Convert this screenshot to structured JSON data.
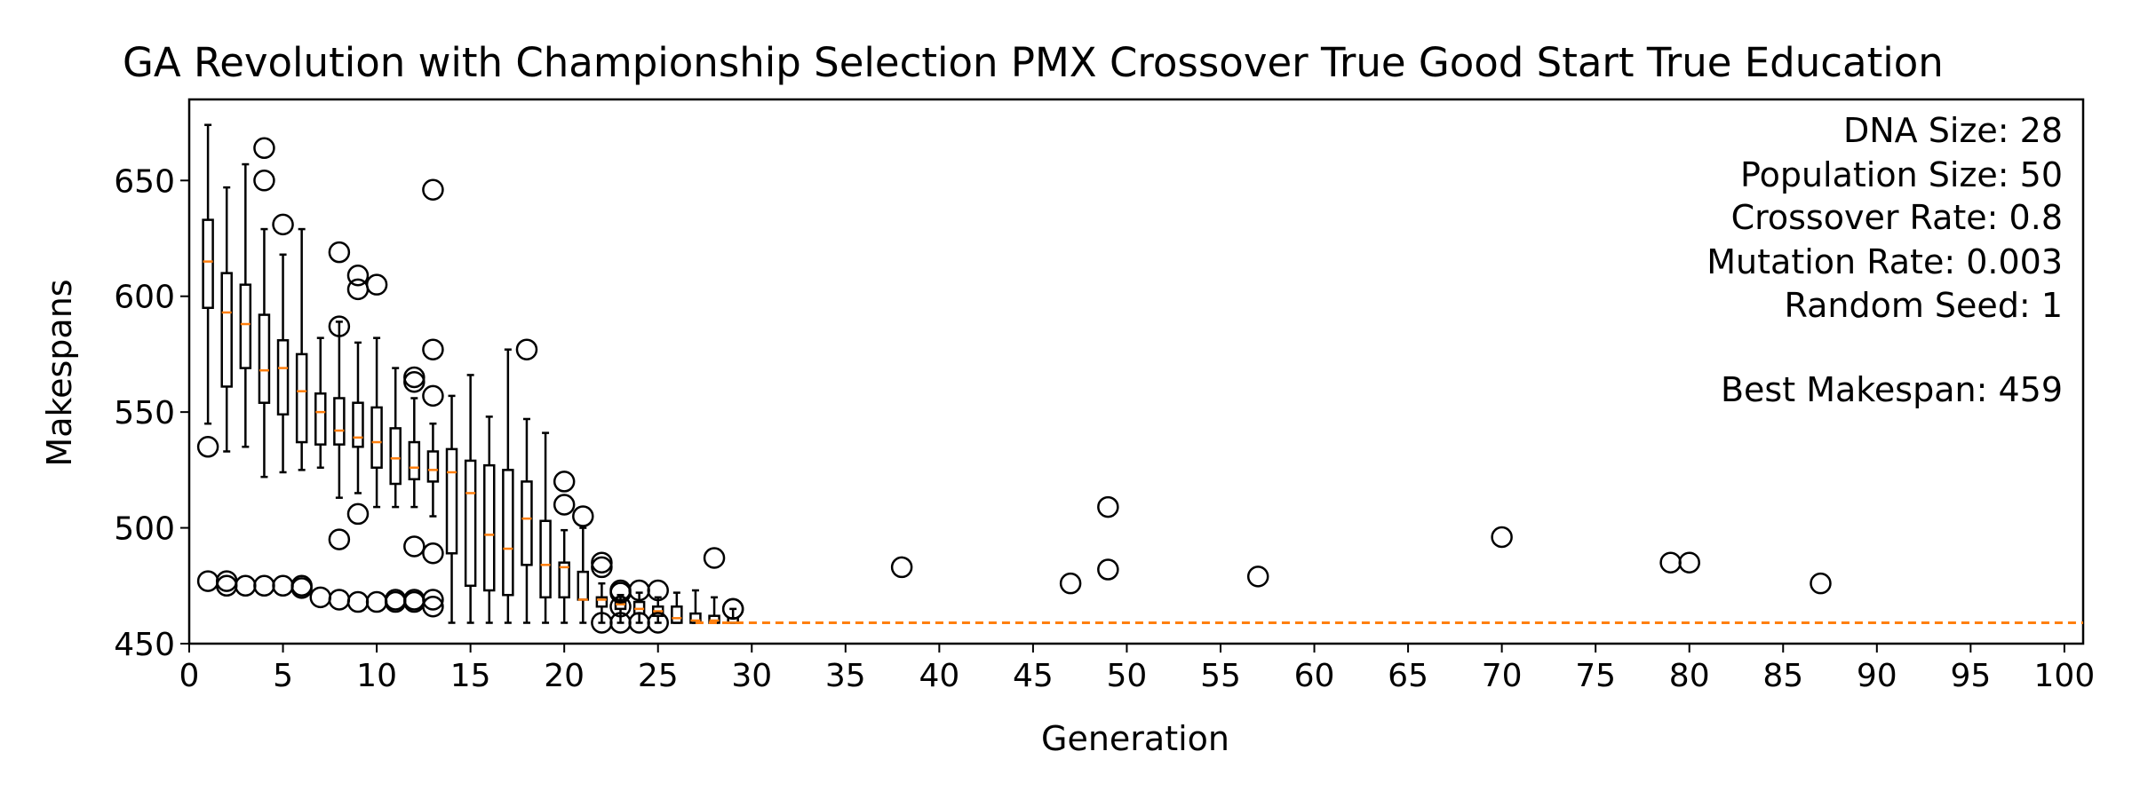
{
  "chart_data": {
    "type": "box",
    "title": "GA Revolution with Championship Selection PMX Crossover True Good Start True Education",
    "xlabel": "Generation",
    "ylabel": "Makespans",
    "xlim": [
      0,
      101
    ],
    "ylim": [
      450,
      685
    ],
    "xticks": [
      0,
      5,
      10,
      15,
      20,
      25,
      30,
      35,
      40,
      45,
      50,
      55,
      60,
      65,
      70,
      75,
      80,
      85,
      90,
      95,
      100
    ],
    "yticks": [
      450,
      500,
      550,
      600,
      650
    ],
    "grid": false,
    "colors": {
      "box": "#000000",
      "median": "#ff7f0e",
      "best_line": "#ff7f0e",
      "flier": "#000000"
    },
    "boxes": [
      {
        "x": 1,
        "low": 545,
        "q1": 595,
        "median": 615,
        "q3": 633,
        "high": 674
      },
      {
        "x": 2,
        "low": 533,
        "q1": 561,
        "median": 593,
        "q3": 610,
        "high": 647
      },
      {
        "x": 3,
        "low": 535,
        "q1": 569,
        "median": 588,
        "q3": 605,
        "high": 657
      },
      {
        "x": 4,
        "low": 522,
        "q1": 554,
        "median": 568,
        "q3": 592,
        "high": 629
      },
      {
        "x": 5,
        "low": 524,
        "q1": 549,
        "median": 569,
        "q3": 581,
        "high": 618
      },
      {
        "x": 6,
        "low": 525,
        "q1": 537,
        "median": 559,
        "q3": 575,
        "high": 629
      },
      {
        "x": 7,
        "low": 526,
        "q1": 536,
        "median": 550,
        "q3": 558,
        "high": 582
      },
      {
        "x": 8,
        "low": 513,
        "q1": 536,
        "median": 542,
        "q3": 556,
        "high": 589
      },
      {
        "x": 9,
        "low": 515,
        "q1": 535,
        "median": 539,
        "q3": 554,
        "high": 580
      },
      {
        "x": 10,
        "low": 509,
        "q1": 526,
        "median": 537,
        "q3": 552,
        "high": 582
      },
      {
        "x": 11,
        "low": 509,
        "q1": 519,
        "median": 530,
        "q3": 543,
        "high": 569
      },
      {
        "x": 12,
        "low": 509,
        "q1": 521,
        "median": 526,
        "q3": 537,
        "high": 556
      },
      {
        "x": 13,
        "low": 505,
        "q1": 520,
        "median": 525,
        "q3": 533,
        "high": 545
      },
      {
        "x": 14,
        "low": 459,
        "q1": 489,
        "median": 524,
        "q3": 534,
        "high": 557
      },
      {
        "x": 15,
        "low": 459,
        "q1": 475,
        "median": 515,
        "q3": 529,
        "high": 566
      },
      {
        "x": 16,
        "low": 459,
        "q1": 473,
        "median": 497,
        "q3": 527,
        "high": 548
      },
      {
        "x": 17,
        "low": 459,
        "q1": 471,
        "median": 491,
        "q3": 525,
        "high": 577
      },
      {
        "x": 18,
        "low": 459,
        "q1": 484,
        "median": 504,
        "q3": 520,
        "high": 547
      },
      {
        "x": 19,
        "low": 459,
        "q1": 470,
        "median": 484,
        "q3": 503,
        "high": 541
      },
      {
        "x": 20,
        "low": 459,
        "q1": 470,
        "median": 483,
        "q3": 485,
        "high": 499
      },
      {
        "x": 21,
        "low": 459,
        "q1": 469,
        "median": 469,
        "q3": 481,
        "high": 500
      },
      {
        "x": 22,
        "low": 459,
        "q1": 466,
        "median": 469,
        "q3": 470,
        "high": 476
      },
      {
        "x": 23,
        "low": 459,
        "q1": 465,
        "median": 467,
        "q3": 468,
        "high": 471
      },
      {
        "x": 24,
        "low": 459,
        "q1": 463,
        "median": 465,
        "q3": 468,
        "high": 472
      },
      {
        "x": 25,
        "low": 459,
        "q1": 462,
        "median": 464,
        "q3": 466,
        "high": 470
      },
      {
        "x": 26,
        "low": 459,
        "q1": 459,
        "median": 461,
        "q3": 466,
        "high": 472
      },
      {
        "x": 27,
        "low": 459,
        "q1": 459,
        "median": 460,
        "q3": 463,
        "high": 473
      },
      {
        "x": 28,
        "low": 459,
        "q1": 459,
        "median": 460,
        "q3": 462,
        "high": 470
      },
      {
        "x": 29,
        "low": 459,
        "q1": 459,
        "median": 459,
        "q3": 461,
        "high": 465
      }
    ],
    "fliers": [
      [
        1,
        535
      ],
      [
        1,
        477
      ],
      [
        2,
        477
      ],
      [
        2,
        475
      ],
      [
        3,
        475
      ],
      [
        4,
        664
      ],
      [
        4,
        650
      ],
      [
        4,
        475
      ],
      [
        5,
        631
      ],
      [
        5,
        475
      ],
      [
        6,
        475
      ],
      [
        6,
        474
      ],
      [
        7,
        470
      ],
      [
        8,
        619
      ],
      [
        8,
        587
      ],
      [
        8,
        495
      ],
      [
        8,
        469
      ],
      [
        9,
        609
      ],
      [
        9,
        603
      ],
      [
        9,
        506
      ],
      [
        9,
        468
      ],
      [
        10,
        605
      ],
      [
        10,
        468
      ],
      [
        11,
        469
      ],
      [
        11,
        468
      ],
      [
        12,
        565
      ],
      [
        12,
        563
      ],
      [
        12,
        492
      ],
      [
        12,
        469
      ],
      [
        12,
        468
      ],
      [
        13,
        646
      ],
      [
        13,
        577
      ],
      [
        13,
        557
      ],
      [
        13,
        489
      ],
      [
        13,
        469
      ],
      [
        13,
        466
      ],
      [
        18,
        577
      ],
      [
        20,
        520
      ],
      [
        20,
        510
      ],
      [
        21,
        505
      ],
      [
        22,
        485
      ],
      [
        22,
        483
      ],
      [
        22,
        459
      ],
      [
        23,
        473
      ],
      [
        23,
        472
      ],
      [
        23,
        466
      ],
      [
        23,
        459
      ],
      [
        24,
        473
      ],
      [
        24,
        459
      ],
      [
        25,
        473
      ],
      [
        25,
        459
      ],
      [
        28,
        487
      ],
      [
        29,
        465
      ],
      [
        29,
        465
      ],
      [
        38,
        483
      ],
      [
        47,
        476
      ],
      [
        49,
        509
      ],
      [
        49,
        482
      ],
      [
        57,
        479
      ],
      [
        70,
        496
      ],
      [
        79,
        485
      ],
      [
        80,
        485
      ],
      [
        87,
        476
      ]
    ],
    "best_line": {
      "from_x": 27,
      "to_x": 101,
      "y": 459
    },
    "info": {
      "dna_size": "DNA Size: 28",
      "population_size": "Population Size: 50",
      "crossover_rate": "Crossover Rate: 0.8",
      "mutation_rate": "Mutation Rate: 0.003",
      "random_seed": "Random Seed: 1",
      "best_makespan": "Best Makespan: 459"
    }
  }
}
